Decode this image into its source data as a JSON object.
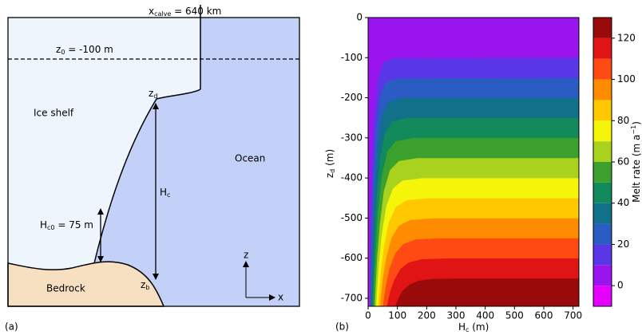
{
  "panel_labels": [
    "(a)",
    "(b)"
  ],
  "diagram": {
    "calve": [
      "x",
      "calve",
      " = 640 km"
    ],
    "z0": [
      "z",
      "0",
      " = -100 m"
    ],
    "zd": [
      "z",
      "d"
    ],
    "ice": "Ice shelf",
    "ocean": "Ocean",
    "hc": [
      "H",
      "c"
    ],
    "hc0": [
      "H",
      "c0",
      " = 75 m"
    ],
    "bedrock": "Bedrock",
    "zb": [
      "z",
      "b"
    ],
    "axis_z": "z",
    "axis_x": "x"
  },
  "chart_data": {
    "type": "contourf",
    "xlabel": [
      "H",
      "c",
      " (m)"
    ],
    "ylabel": [
      "z",
      "d",
      " (m)"
    ],
    "colorbar_label": [
      "Melt rate (m a",
      "−1",
      ")"
    ],
    "xlim": [
      0,
      720
    ],
    "xticks": [
      0,
      100,
      200,
      300,
      400,
      500,
      600,
      700
    ],
    "ylim": [
      -720,
      0
    ],
    "yticks": [
      0,
      -100,
      -200,
      -300,
      -400,
      -500,
      -600,
      -700
    ],
    "levels": [
      -10,
      0,
      10,
      20,
      30,
      40,
      50,
      60,
      70,
      80,
      90,
      100,
      110,
      120,
      130
    ],
    "colors": [
      "#e600ff",
      "#9a14f0",
      "#5a37e6",
      "#2a5cc4",
      "#11718a",
      "#128a5c",
      "#3ca02c",
      "#a8d21e",
      "#f5f50a",
      "#ffc800",
      "#ff8c00",
      "#ff4a14",
      "#e01414",
      "#9a0a0a"
    ],
    "colorbar_ticks": [
      0,
      20,
      40,
      60,
      80,
      100,
      120
    ],
    "contours": [
      {
        "level": 120,
        "x": [
          92,
          97,
          105,
          117,
          139,
          171,
          218,
          313,
          720
        ],
        "y": [
          -720,
          -710,
          -697,
          -681,
          -666,
          -656,
          -651,
          -650,
          -650
        ]
      },
      {
        "level": 110,
        "x": [
          64,
          68,
          76,
          88,
          109,
          139,
          183,
          273,
          720
        ],
        "y": [
          -720,
          -703,
          -680,
          -654,
          -627,
          -610,
          -602,
          -600,
          -600
        ]
      },
      {
        "level": 100,
        "x": [
          50,
          54,
          61,
          72,
          92,
          120,
          162,
          246,
          720
        ],
        "y": [
          -720,
          -696,
          -664,
          -626,
          -588,
          -564,
          -553,
          -550,
          -550
        ]
      },
      {
        "level": 90,
        "x": [
          40,
          44,
          50,
          61,
          79,
          106,
          145,
          223,
          720
        ],
        "y": [
          -720,
          -689,
          -647,
          -599,
          -549,
          -518,
          -504,
          -500,
          -500
        ]
      },
      {
        "level": 80,
        "x": [
          33,
          37,
          43,
          53,
          70,
          94,
          131,
          204,
          720
        ],
        "y": [
          -720,
          -682,
          -631,
          -571,
          -510,
          -472,
          -455,
          -450,
          -450
        ]
      },
      {
        "level": 70,
        "x": [
          27,
          30,
          36,
          45,
          61,
          84,
          117,
          185,
          720
        ],
        "y": [
          -720,
          -676,
          -614,
          -544,
          -471,
          -426,
          -406,
          -400,
          -400
        ]
      },
      {
        "level": 60,
        "x": [
          22,
          25,
          30,
          39,
          53,
          74,
          105,
          168,
          720
        ],
        "y": [
          -720,
          -669,
          -598,
          -516,
          -433,
          -380,
          -357,
          -350,
          -350
        ]
      },
      {
        "level": 50,
        "x": [
          17,
          20,
          25,
          32,
          46,
          65,
          93,
          150,
          720
        ],
        "y": [
          -720,
          -662,
          -581,
          -489,
          -394,
          -334,
          -308,
          -300,
          -300
        ]
      },
      {
        "level": 40,
        "x": [
          13,
          16,
          20,
          27,
          39,
          56,
          82,
          133,
          720
        ],
        "y": [
          -720,
          -655,
          -565,
          -461,
          -355,
          -289,
          -258,
          -250,
          -250
        ]
      },
      {
        "level": 30,
        "x": [
          9,
          11,
          15,
          21,
          32,
          48,
          71,
          117,
          720
        ],
        "y": [
          -720,
          -648,
          -548,
          -433,
          -316,
          -243,
          -209,
          -200,
          -200
        ]
      },
      {
        "level": 20,
        "x": [
          6,
          8,
          11,
          17,
          26,
          40,
          60,
          101,
          720
        ],
        "y": [
          -720,
          -641,
          -532,
          -406,
          -277,
          -197,
          -160,
          -151,
          -150
        ]
      },
      {
        "level": 10,
        "x": [
          3,
          5,
          8,
          13,
          21,
          33,
          51,
          87,
          720
        ],
        "y": [
          -720,
          -634,
          -515,
          -378,
          -238,
          -151,
          -111,
          -101,
          -100
        ]
      },
      {
        "level": 0,
        "x": [
          5,
          3,
          1,
          0
        ],
        "y": [
          -720,
          -600,
          -480,
          -400
        ]
      }
    ]
  }
}
